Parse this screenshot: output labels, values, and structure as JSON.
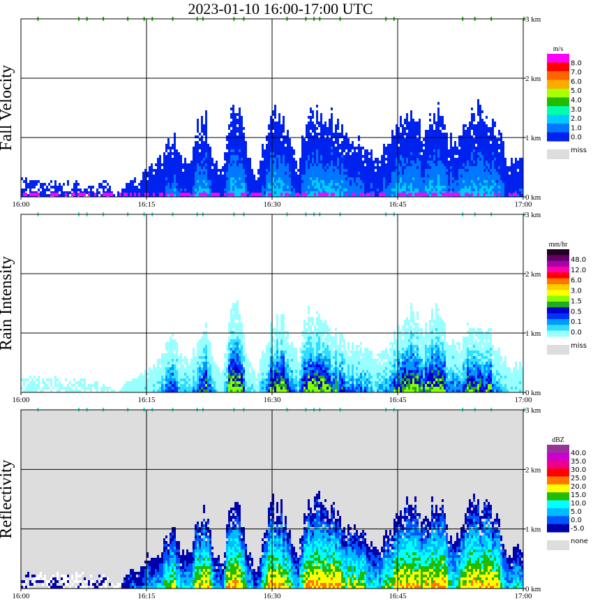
{
  "title": "2023-01-10  16:00-17:00 UTC",
  "chart_data": [
    {
      "type": "heatmap",
      "title": "Fall Velocity",
      "variable": "fall_velocity",
      "x_ticks": [
        "16:00",
        "16:15",
        "16:30",
        "16:45",
        "17:00"
      ],
      "y_ticks": [
        "0 km",
        "1 km",
        "2 km",
        "3 km"
      ],
      "xlim_minutes": [
        0,
        60
      ],
      "ylim_km": [
        0,
        3.0
      ],
      "colorbar": {
        "unit": "m/s",
        "labels": [
          "8.0",
          "7.0",
          "6.0",
          "5.0",
          "4.0",
          "3.0",
          "2.0",
          "1.0",
          "0.0"
        ],
        "missing_label": "miss",
        "colors": [
          "#ff00ff",
          "#ff0000",
          "#ff6600",
          "#ffaa00",
          "#aaff00",
          "#22bb00",
          "#00ffaa",
          "#00ccff",
          "#0077ff",
          "#0022ee"
        ],
        "missing_color": "#dddddd"
      },
      "background": "#ffffff",
      "echo_top_km": [
        0.35,
        0.33,
        0.3,
        0.25,
        0.3,
        0.28,
        0.25,
        0.3,
        0.22,
        0.2,
        0.35,
        0.05,
        0.15,
        0.35,
        0.3,
        0.5,
        0.6,
        0.75,
        1.1,
        0.7,
        0.6,
        1.2,
        1.4,
        0.6,
        0.5,
        1.5,
        1.5,
        0.7,
        0.3,
        1.0,
        1.5,
        1.4,
        1.0,
        0.6,
        1.4,
        1.5,
        1.5,
        1.4,
        1.2,
        1.0,
        1.1,
        0.9,
        0.7,
        0.8,
        1.0,
        1.3,
        1.6,
        1.4,
        1.2,
        1.4,
        1.6,
        1.0,
        0.9,
        1.2,
        1.5,
        1.5,
        1.4,
        1.1,
        0.6,
        0.7
      ],
      "surface_color": "#ff00ff",
      "ground_clutter": true
    },
    {
      "type": "heatmap",
      "title": "Rain Intensity",
      "variable": "rain_rate",
      "x_ticks": [
        "16:00",
        "16:15",
        "16:30",
        "16:45",
        "17:00"
      ],
      "y_ticks": [
        "0 km",
        "1 km",
        "2 km",
        "3 km"
      ],
      "xlim_minutes": [
        0,
        60
      ],
      "ylim_km": [
        0,
        3.0
      ],
      "colorbar": {
        "unit": "mm/hr",
        "labels": [
          "48.0",
          "12.0",
          "6.0",
          "3.0",
          "1.5",
          "0.5",
          "0.1",
          "0.0"
        ],
        "missing_label": "miss",
        "colors": [
          "#220022",
          "#660066",
          "#aa00aa",
          "#ff00aa",
          "#ff0000",
          "#ff7700",
          "#ffcc00",
          "#ffff00",
          "#88ff00",
          "#22aa22",
          "#0000cc",
          "#0033ff",
          "#0099ff",
          "#33ddff",
          "#99ffff"
        ],
        "missing_color": "#dddddd"
      },
      "background": "#ffffff",
      "echo_top_km": [
        0.3,
        0.3,
        0.3,
        0.25,
        0.28,
        0.25,
        0.25,
        0.25,
        0.2,
        0.2,
        0.2,
        0.05,
        0.1,
        0.3,
        0.3,
        0.4,
        0.5,
        0.8,
        1.0,
        0.7,
        0.6,
        0.9,
        1.1,
        0.6,
        0.4,
        1.4,
        1.4,
        0.6,
        0.3,
        0.8,
        1.2,
        1.3,
        1.0,
        0.6,
        1.3,
        1.4,
        1.3,
        1.1,
        1.0,
        0.8,
        0.9,
        0.8,
        0.6,
        0.7,
        0.9,
        1.1,
        1.5,
        1.3,
        1.1,
        1.3,
        1.5,
        0.9,
        0.8,
        1.0,
        1.3,
        1.2,
        1.0,
        0.8,
        0.5,
        0.5
      ],
      "surface_color": "#99ffff",
      "ground_clutter": false
    },
    {
      "type": "heatmap",
      "title": "Reflectivity",
      "variable": "reflectivity",
      "x_ticks": [
        "16:00",
        "16:15",
        "16:30",
        "16:45",
        "17:00"
      ],
      "y_ticks": [
        "0 km",
        "1 km",
        "2 km",
        "3 km"
      ],
      "xlim_minutes": [
        0,
        60
      ],
      "ylim_km": [
        0,
        3.0
      ],
      "colorbar": {
        "unit": "dBZ",
        "labels": [
          "40.0",
          "35.0",
          "30.0",
          "25.0",
          "20.0",
          "15.0",
          "10.0",
          "5.0",
          "0.0",
          "-5.0"
        ],
        "missing_label": "none",
        "colors": [
          "#993399",
          "#cc00cc",
          "#ee0088",
          "#ff0000",
          "#ff7700",
          "#ffff00",
          "#22bb00",
          "#00ffff",
          "#00bbff",
          "#0055ff",
          "#0000aa"
        ],
        "missing_color": "#dddddd"
      },
      "background": "#dddddd",
      "echo_top_km": [
        0.3,
        0.3,
        0.28,
        0.25,
        0.28,
        0.25,
        0.25,
        0.28,
        0.22,
        0.22,
        0.3,
        0.05,
        0.15,
        0.35,
        0.3,
        0.55,
        0.65,
        0.8,
        1.1,
        0.7,
        0.6,
        1.2,
        1.4,
        0.6,
        0.5,
        1.5,
        1.5,
        0.7,
        0.3,
        1.0,
        1.5,
        1.4,
        1.0,
        0.6,
        1.4,
        1.5,
        1.5,
        1.4,
        1.2,
        1.0,
        1.1,
        0.9,
        0.7,
        0.8,
        1.0,
        1.3,
        1.6,
        1.4,
        1.2,
        1.4,
        1.6,
        1.0,
        0.9,
        1.2,
        1.5,
        1.5,
        1.4,
        1.1,
        0.6,
        0.7
      ],
      "surface_color": "#ffffff",
      "ground_clutter": false
    }
  ]
}
